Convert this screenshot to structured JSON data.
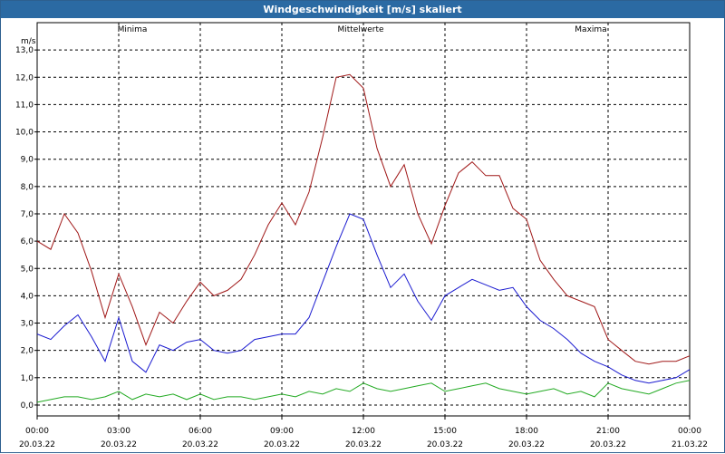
{
  "window": {
    "title": "Windgeschwindigkeit [m/s] skaliert"
  },
  "colors": {
    "minima": "#22aa22",
    "mittel": "#1a1ad0",
    "maxima": "#a01818",
    "grid": "#000000",
    "titlebar": "#2b6aa3"
  },
  "chart_data": {
    "type": "line",
    "title": "Windgeschwindigkeit [m/s] skaliert",
    "ylabel": "m/s",
    "ylim": [
      -0.4,
      14.0
    ],
    "y_ticks": [
      "0,0",
      "1,0",
      "2,0",
      "3,0",
      "4,0",
      "5,0",
      "6,0",
      "7,0",
      "8,0",
      "9,0",
      "10,0",
      "11,0",
      "12,0",
      "13,0"
    ],
    "x_ticks": [
      {
        "time": "00:00",
        "date": "20.03.22"
      },
      {
        "time": "03:00",
        "date": "20.03.22"
      },
      {
        "time": "06:00",
        "date": "20.03.22"
      },
      {
        "time": "09:00",
        "date": "20.03.22"
      },
      {
        "time": "12:00",
        "date": "20.03.22"
      },
      {
        "time": "15:00",
        "date": "20.03.22"
      },
      {
        "time": "18:00",
        "date": "20.03.22"
      },
      {
        "time": "21:00",
        "date": "20.03.22"
      },
      {
        "time": "00:00",
        "date": "21.03.22"
      }
    ],
    "x": [
      0.0,
      0.5,
      1.0,
      1.5,
      2.0,
      2.5,
      3.0,
      3.5,
      4.0,
      4.5,
      5.0,
      5.5,
      6.0,
      6.5,
      7.0,
      7.5,
      8.0,
      8.5,
      9.0,
      9.5,
      10.0,
      10.5,
      11.0,
      11.5,
      12.0,
      12.5,
      13.0,
      13.5,
      14.0,
      14.5,
      15.0,
      15.5,
      16.0,
      16.5,
      17.0,
      17.5,
      18.0,
      18.5,
      19.0,
      19.5,
      20.0,
      20.5,
      21.0,
      21.5,
      22.0,
      22.5,
      23.0,
      23.5,
      24.0
    ],
    "series": [
      {
        "name": "Minima",
        "color": "#22aa22",
        "values": [
          0.1,
          0.2,
          0.3,
          0.3,
          0.2,
          0.3,
          0.5,
          0.2,
          0.4,
          0.3,
          0.4,
          0.2,
          0.4,
          0.2,
          0.3,
          0.3,
          0.2,
          0.3,
          0.4,
          0.3,
          0.5,
          0.4,
          0.6,
          0.5,
          0.8,
          0.6,
          0.5,
          0.6,
          0.7,
          0.8,
          0.5,
          0.6,
          0.7,
          0.8,
          0.6,
          0.5,
          0.4,
          0.5,
          0.6,
          0.4,
          0.5,
          0.3,
          0.8,
          0.6,
          0.5,
          0.4,
          0.6,
          0.8,
          0.9
        ]
      },
      {
        "name": "Mittelwerte",
        "color": "#1a1ad0",
        "values": [
          2.6,
          2.4,
          2.9,
          3.3,
          2.5,
          1.6,
          3.2,
          1.6,
          1.2,
          2.2,
          2.0,
          2.3,
          2.4,
          2.0,
          1.9,
          2.0,
          2.4,
          2.5,
          2.6,
          2.6,
          3.2,
          4.5,
          5.8,
          7.0,
          6.8,
          5.5,
          4.3,
          4.8,
          3.8,
          3.1,
          4.0,
          4.3,
          4.6,
          4.4,
          4.2,
          4.3,
          3.6,
          3.1,
          2.8,
          2.4,
          1.9,
          1.6,
          1.4,
          1.1,
          0.9,
          0.8,
          0.9,
          1.0,
          1.3
        ]
      },
      {
        "name": "Maxima",
        "color": "#a01818",
        "values": [
          6.0,
          5.7,
          7.0,
          6.3,
          4.9,
          3.2,
          4.8,
          3.6,
          2.2,
          3.4,
          3.0,
          3.8,
          4.5,
          4.0,
          4.2,
          4.6,
          5.5,
          6.6,
          7.4,
          6.6,
          7.8,
          9.8,
          12.0,
          12.1,
          11.6,
          9.4,
          8.0,
          8.8,
          7.0,
          5.9,
          7.3,
          8.5,
          8.9,
          8.4,
          8.4,
          7.2,
          6.8,
          5.3,
          4.6,
          4.0,
          3.8,
          3.6,
          2.4,
          2.0,
          1.6,
          1.5,
          1.6,
          1.6,
          1.8
        ]
      }
    ],
    "legend": [
      "Minima",
      "Mittelwerte",
      "Maxima"
    ],
    "grid": true
  }
}
